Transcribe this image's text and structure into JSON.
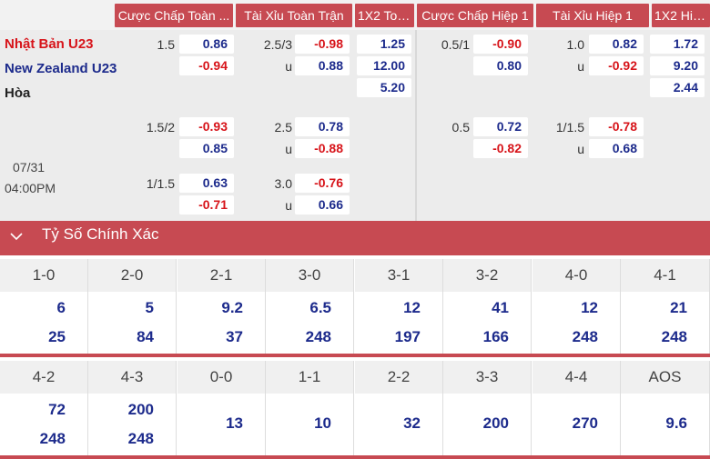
{
  "headers": [
    "Cược Chấp Toàn ...",
    "Tài Xỉu Toàn Trận",
    "1X2 Toà...",
    "Cược Chấp Hiệp 1",
    "Tài Xỉu Hiệp 1",
    "1X2 Hiệ..."
  ],
  "teams": {
    "home": "Nhật Bản U23",
    "away": "New Zealand U23",
    "draw": "Hòa"
  },
  "date": "07/31",
  "time": "04:00PM",
  "rows": [
    {
      "hcp_line": "1.5",
      "hcp_home": "0.86",
      "hcp_away": "-0.94",
      "ou_line": "2.5/3",
      "ou_over": "-0.98",
      "ou_u": "u",
      "ou_under": "0.88",
      "x12_home": "1.25",
      "x12_away": "12.00",
      "x12_draw": "5.20",
      "h1_line": "0.5/1",
      "h1_home": "-0.90",
      "h1_away": "0.80",
      "h1ou_line": "1.0",
      "h1ou_over": "0.82",
      "h1ou_u": "u",
      "h1ou_under": "-0.92",
      "h1x12_home": "1.72",
      "h1x12_away": "9.20",
      "h1x12_draw": "2.44"
    },
    {
      "hcp_line": "1.5/2",
      "hcp_home": "-0.93",
      "hcp_away": "0.85",
      "ou_line": "2.5",
      "ou_over": "0.78",
      "ou_u": "u",
      "ou_under": "-0.88",
      "h1_line": "0.5",
      "h1_home": "0.72",
      "h1_away": "-0.82",
      "h1ou_line": "1/1.5",
      "h1ou_over": "-0.78",
      "h1ou_u": "u",
      "h1ou_under": "0.68"
    },
    {
      "hcp_line": "1/1.5",
      "hcp_home": "0.63",
      "hcp_away": "-0.71",
      "ou_line": "3.0",
      "ou_over": "-0.76",
      "ou_u": "u",
      "ou_under": "0.66"
    }
  ],
  "section": {
    "title": "Tỷ Số Chính Xác",
    "icon": "chevron-down-icon"
  },
  "scores_row1": [
    {
      "score": "1-0",
      "a": "6",
      "b": "25"
    },
    {
      "score": "2-0",
      "a": "5",
      "b": "84"
    },
    {
      "score": "2-1",
      "a": "9.2",
      "b": "37"
    },
    {
      "score": "3-0",
      "a": "6.5",
      "b": "248"
    },
    {
      "score": "3-1",
      "a": "12",
      "b": "197"
    },
    {
      "score": "3-2",
      "a": "41",
      "b": "166"
    },
    {
      "score": "4-0",
      "a": "12",
      "b": "248"
    },
    {
      "score": "4-1",
      "a": "21",
      "b": "248"
    }
  ],
  "scores_row2": [
    {
      "score": "4-2",
      "a": "72",
      "b": "248"
    },
    {
      "score": "4-3",
      "a": "200",
      "b": "248"
    },
    {
      "score": "0-0",
      "a": "13"
    },
    {
      "score": "1-1",
      "a": "10"
    },
    {
      "score": "2-2",
      "a": "32"
    },
    {
      "score": "3-3",
      "a": "200"
    },
    {
      "score": "4-4",
      "a": "270"
    },
    {
      "score": "AOS",
      "a": "9.6"
    }
  ],
  "colors": {
    "accent": "#c74a52",
    "positive": "#1d2b8c",
    "negative": "#d7141a"
  }
}
